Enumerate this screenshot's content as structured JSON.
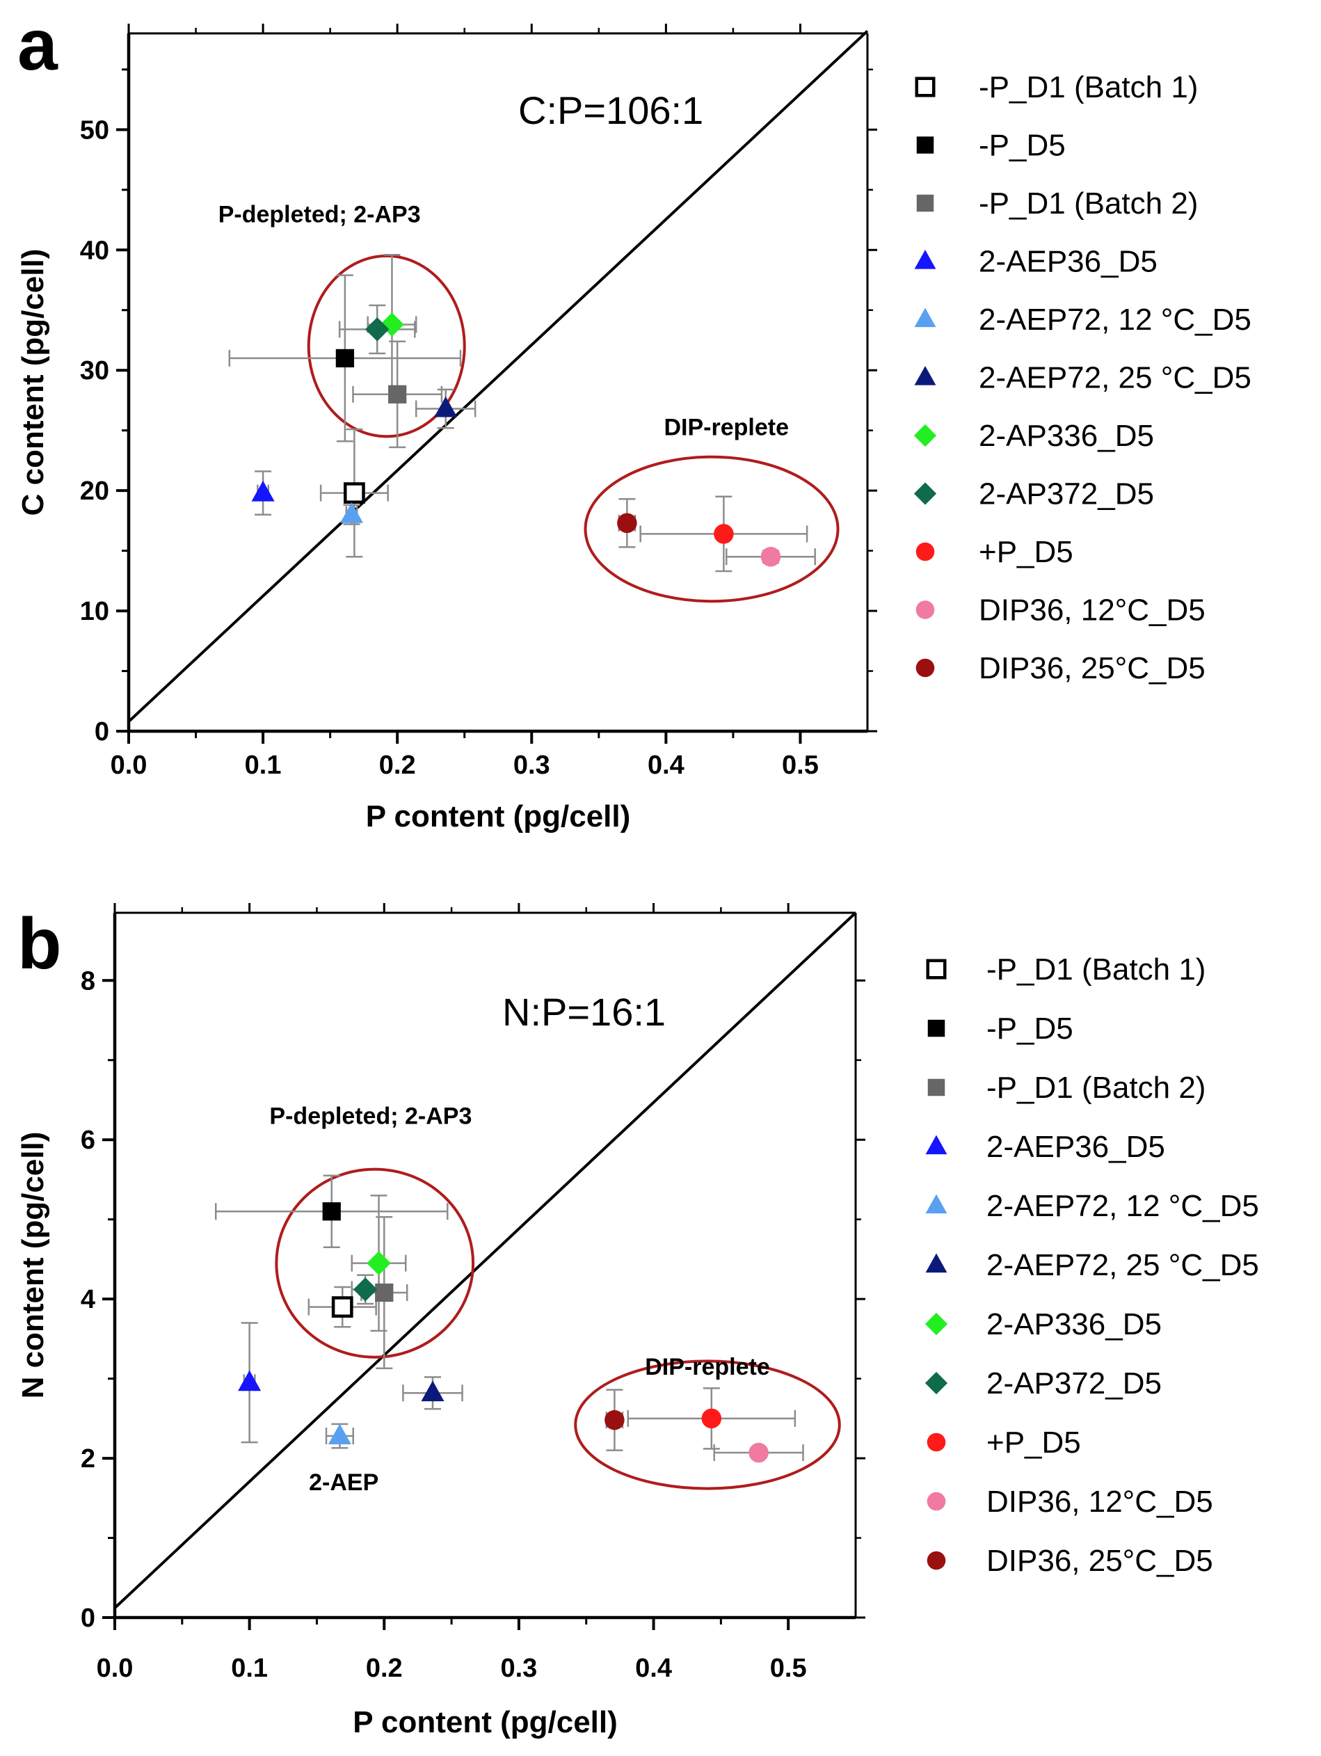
{
  "colors": {
    "axis": "#000000",
    "errorbar": "#8c8c8c",
    "ellipse": "#b01c1c",
    "ratio_line": "#000000"
  },
  "series_styles": [
    {
      "name": "-P_D1 (Batch 1)",
      "marker": "square-open",
      "color": "#000000"
    },
    {
      "name": "-P_D5",
      "marker": "square",
      "color": "#000000"
    },
    {
      "name": "-P_D1 (Batch 2)",
      "marker": "square",
      "color": "#666666"
    },
    {
      "name": "2-AEP36_D5",
      "marker": "triangle",
      "color": "#1515ff"
    },
    {
      "name": "2-AEP72, 12 °C_D5",
      "marker": "triangle",
      "color": "#5aa0f0"
    },
    {
      "name": "2-AEP72, 25 °C_D5",
      "marker": "triangle",
      "color": "#0b1a7a"
    },
    {
      "name": "2-AP336_D5",
      "marker": "diamond",
      "color": "#22ee22"
    },
    {
      "name": "2-AP372_D5",
      "marker": "diamond",
      "color": "#0f6b4a"
    },
    {
      "name": "+P_D5",
      "marker": "circle",
      "color": "#ff1a1a"
    },
    {
      "name": "DIP36, 12°C_D5",
      "marker": "circle",
      "color": "#f07aa0"
    },
    {
      "name": "DIP36, 25°C_D5",
      "marker": "circle",
      "color": "#9a0f0f"
    }
  ],
  "chart_data": [
    {
      "panel": "a",
      "type": "scatter",
      "title": "",
      "xlabel": "P content (pg/cell)",
      "ylabel": "C content (pg/cell)",
      "xlim": [
        0,
        0.55
      ],
      "ylim": [
        0,
        58
      ],
      "x_ticks": [
        0.0,
        0.1,
        0.2,
        0.3,
        0.4,
        0.5
      ],
      "x_tick_labels": [
        "0.0",
        "0.1",
        "0.2",
        "0.3",
        "0.4",
        "0.5"
      ],
      "y_ticks": [
        0,
        10,
        20,
        30,
        40,
        50
      ],
      "y_tick_labels": [
        "0",
        "10",
        "20",
        "30",
        "40",
        "50"
      ],
      "ratio_line": {
        "label": "C:P=106:1",
        "x0": 0,
        "y0": 0.8,
        "x1": 0.55,
        "y1": 58.2
      },
      "annotations": [
        {
          "text": "P-depleted; 2-AP3",
          "x": 0.142,
          "y": 42.3
        },
        {
          "text": "DIP-replete",
          "x": 0.445,
          "y": 24.6
        }
      ],
      "ellipses": [
        {
          "cx": 0.192,
          "cy": 32.0,
          "rx": 0.058,
          "ry": 7.5
        },
        {
          "cx": 0.434,
          "cy": 16.8,
          "rx": 0.094,
          "ry": 6.0
        }
      ],
      "points": [
        {
          "series": "-P_D1 (Batch 1)",
          "x": 0.168,
          "y": 19.8,
          "xerr": 0.025,
          "yerr": 5.3
        },
        {
          "series": "-P_D5",
          "x": 0.161,
          "y": 31.0,
          "xerr": 0.086,
          "yerr": 6.9
        },
        {
          "series": "-P_D1 (Batch 2)",
          "x": 0.2,
          "y": 28.0,
          "xerr": 0.033,
          "yerr": 4.4
        },
        {
          "series": "2-AEP36_D5",
          "x": 0.1,
          "y": 19.8,
          "xerr": 0.004,
          "yerr": 1.8
        },
        {
          "series": "2-AEP72, 12 °C_D5",
          "x": 0.166,
          "y": 18.0,
          "xerr": 0.004,
          "yerr": 0.8
        },
        {
          "series": "2-AEP72, 25 °C_D5",
          "x": 0.236,
          "y": 26.8,
          "xerr": 0.022,
          "yerr": 1.6
        },
        {
          "series": "2-AP336_D5",
          "x": 0.196,
          "y": 33.8,
          "xerr": 0.018,
          "yerr": 5.8
        },
        {
          "series": "2-AP372_D5",
          "x": 0.185,
          "y": 33.4,
          "xerr": 0.028,
          "yerr": 2.0
        },
        {
          "series": "+P_D5",
          "x": 0.443,
          "y": 16.4,
          "xerr": 0.062,
          "yerr": 3.1
        },
        {
          "series": "DIP36, 12°C_D5",
          "x": 0.478,
          "y": 14.5,
          "xerr": 0.033,
          "yerr": 0.5
        },
        {
          "series": "DIP36, 25°C_D5",
          "x": 0.371,
          "y": 17.3,
          "xerr": 0.006,
          "yerr": 2.0
        }
      ]
    },
    {
      "panel": "b",
      "type": "scatter",
      "title": "",
      "xlabel": "P content (pg/cell)",
      "ylabel": "N content (pg/cell)",
      "xlim": [
        0,
        0.55
      ],
      "ylim": [
        0,
        8.85
      ],
      "x_ticks": [
        0.0,
        0.1,
        0.2,
        0.3,
        0.4,
        0.5
      ],
      "x_tick_labels": [
        "0.0",
        "0.1",
        "0.2",
        "0.3",
        "0.4",
        "0.5"
      ],
      "y_ticks": [
        0,
        2,
        4,
        6,
        8
      ],
      "y_tick_labels": [
        "0",
        "2",
        "4",
        "6",
        "8"
      ],
      "ratio_line": {
        "label": "N:P=16:1",
        "x0": 0,
        "y0": 0.12,
        "x1": 0.55,
        "y1": 8.85
      },
      "annotations": [
        {
          "text": "P-depleted; 2-AP3",
          "x": 0.19,
          "y": 6.2
        },
        {
          "text": "2-AEP",
          "x": 0.17,
          "y": 1.6
        },
        {
          "text": "DIP-replete",
          "x": 0.44,
          "y": 3.05
        }
      ],
      "ellipses": [
        {
          "cx": 0.193,
          "cy": 4.45,
          "rx": 0.073,
          "ry": 1.18
        },
        {
          "cx": 0.44,
          "cy": 2.42,
          "rx": 0.098,
          "ry": 0.8
        }
      ],
      "points": [
        {
          "series": "-P_D1 (Batch 1)",
          "x": 0.169,
          "y": 3.9,
          "xerr": 0.025,
          "yerr": 0.25
        },
        {
          "series": "-P_D5",
          "x": 0.161,
          "y": 5.1,
          "xerr": 0.086,
          "yerr": 0.45
        },
        {
          "series": "-P_D1 (Batch 2)",
          "x": 0.2,
          "y": 4.08,
          "xerr": 0.017,
          "yerr": 0.95
        },
        {
          "series": "2-AEP36_D5",
          "x": 0.1,
          "y": 2.95,
          "xerr": 0.004,
          "yerr": 0.75
        },
        {
          "series": "2-AEP72, 12 °C_D5",
          "x": 0.167,
          "y": 2.28,
          "xerr": 0.01,
          "yerr": 0.15
        },
        {
          "series": "2-AEP72, 25 °C_D5",
          "x": 0.236,
          "y": 2.82,
          "xerr": 0.022,
          "yerr": 0.2
        },
        {
          "series": "2-AP336_D5",
          "x": 0.196,
          "y": 4.45,
          "xerr": 0.02,
          "yerr": 0.85
        },
        {
          "series": "2-AP372_D5",
          "x": 0.186,
          "y": 4.12,
          "xerr": 0.01,
          "yerr": 0.18
        },
        {
          "series": "+P_D5",
          "x": 0.443,
          "y": 2.5,
          "xerr": 0.062,
          "yerr": 0.38
        },
        {
          "series": "DIP36, 12°C_D5",
          "x": 0.478,
          "y": 2.07,
          "xerr": 0.033,
          "yerr": 0.06
        },
        {
          "series": "DIP36, 25°C_D5",
          "x": 0.371,
          "y": 2.48,
          "xerr": 0.006,
          "yerr": 0.38
        }
      ]
    }
  ]
}
